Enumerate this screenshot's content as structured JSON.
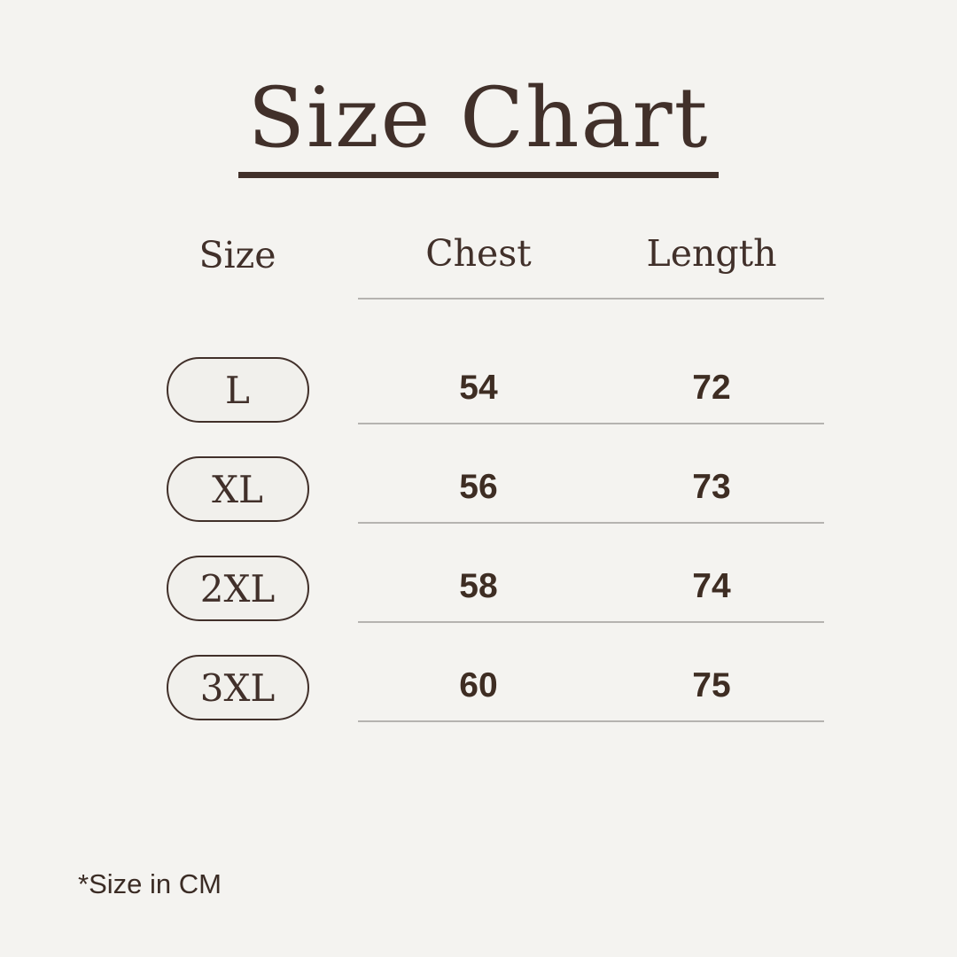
{
  "title": {
    "text": "Size Chart"
  },
  "table": {
    "headers": {
      "size": "Size",
      "chest": "Chest",
      "length": "Length"
    },
    "rows": [
      {
        "size": "L",
        "chest": "54",
        "length": "72"
      },
      {
        "size": "XL",
        "chest": "56",
        "length": "73"
      },
      {
        "size": "2XL",
        "chest": "58",
        "length": "74"
      },
      {
        "size": "3XL",
        "chest": "60",
        "length": "75"
      }
    ]
  },
  "footnote": "*Size in CM",
  "units": "CM",
  "colors": {
    "background": "#f4f3f0",
    "text_brown": "#41302a",
    "number_brown": "#3e2d23",
    "separator_gray": "#b5b3b0",
    "pill_fill": "#f1f0ec"
  }
}
